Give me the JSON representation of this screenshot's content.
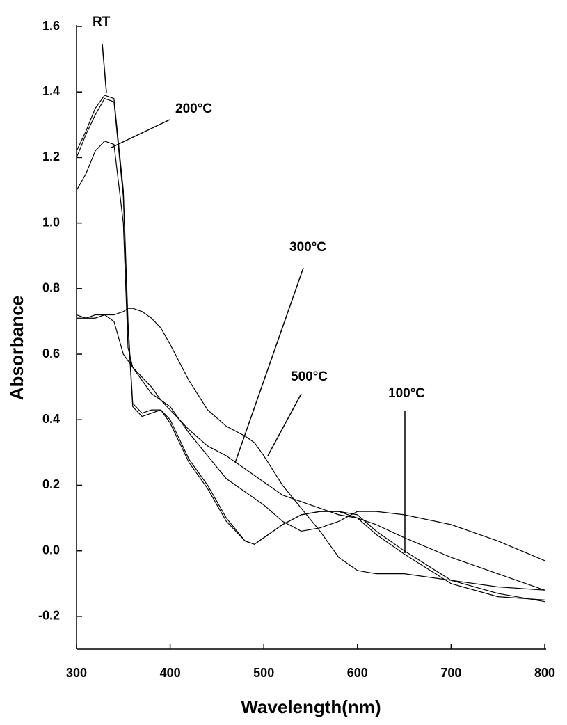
{
  "chart_data": {
    "type": "line",
    "x_label": "Wavelength(nm)",
    "y_label": "Absorbance",
    "x": [
      300,
      310,
      320,
      330,
      340,
      350,
      355,
      360,
      370,
      380,
      390,
      400,
      420,
      440,
      460,
      480,
      490,
      500,
      520,
      540,
      560,
      580,
      600,
      620,
      650,
      700,
      750,
      800
    ],
    "series": [
      {
        "name": "RT",
        "color": "#000000",
        "values": [
          1.22,
          1.28,
          1.35,
          1.39,
          1.38,
          1.1,
          0.7,
          0.45,
          0.42,
          0.43,
          0.43,
          0.4,
          0.28,
          0.2,
          0.1,
          0.03,
          0.02,
          0.04,
          0.08,
          0.11,
          0.12,
          0.12,
          0.1,
          0.05,
          -0.01,
          -0.1,
          -0.14,
          -0.15
        ]
      },
      {
        "name": "100°C",
        "color": "#000000",
        "values": [
          1.2,
          1.27,
          1.33,
          1.38,
          1.37,
          1.08,
          0.68,
          0.44,
          0.41,
          0.42,
          0.43,
          0.39,
          0.27,
          0.19,
          0.09,
          0.03,
          0.02,
          0.04,
          0.08,
          0.11,
          0.12,
          0.12,
          0.11,
          0.06,
          0.0,
          -0.09,
          -0.13,
          -0.155
        ]
      },
      {
        "name": "200°C",
        "color": "#000000",
        "values": [
          1.1,
          1.15,
          1.22,
          1.25,
          1.24,
          1.0,
          0.62,
          0.56,
          0.52,
          0.48,
          0.46,
          0.44,
          0.36,
          0.29,
          0.22,
          0.18,
          0.16,
          0.14,
          0.09,
          0.06,
          0.07,
          0.09,
          0.12,
          0.12,
          0.11,
          0.08,
          0.03,
          -0.03
        ]
      },
      {
        "name": "300°C",
        "color": "#000000",
        "values": [
          0.71,
          0.71,
          0.72,
          0.72,
          0.7,
          0.6,
          0.58,
          0.56,
          0.53,
          0.5,
          0.46,
          0.43,
          0.37,
          0.32,
          0.29,
          0.25,
          0.23,
          0.21,
          0.17,
          0.15,
          0.13,
          0.11,
          0.1,
          0.08,
          0.04,
          -0.02,
          -0.07,
          -0.12
        ]
      },
      {
        "name": "500°C",
        "color": "#000000",
        "values": [
          0.72,
          0.71,
          0.71,
          0.72,
          0.72,
          0.73,
          0.74,
          0.74,
          0.73,
          0.71,
          0.68,
          0.63,
          0.52,
          0.43,
          0.38,
          0.35,
          0.33,
          0.29,
          0.2,
          0.13,
          0.06,
          -0.02,
          -0.06,
          -0.07,
          -0.07,
          -0.09,
          -0.11,
          -0.12
        ]
      }
    ],
    "xlim": [
      300,
      800
    ],
    "xticks": [
      300,
      400,
      500,
      600,
      700,
      800
    ],
    "ylim": [
      -0.3,
      1.6
    ],
    "yticks": [
      -0.2,
      {
        "value": 0,
        "label": "0.0"
      },
      0.2,
      0.4,
      0.6,
      0.8,
      {
        "value": 1,
        "label": "1.0"
      },
      1.2,
      1.4,
      1.6
    ],
    "grid": false
  }
}
